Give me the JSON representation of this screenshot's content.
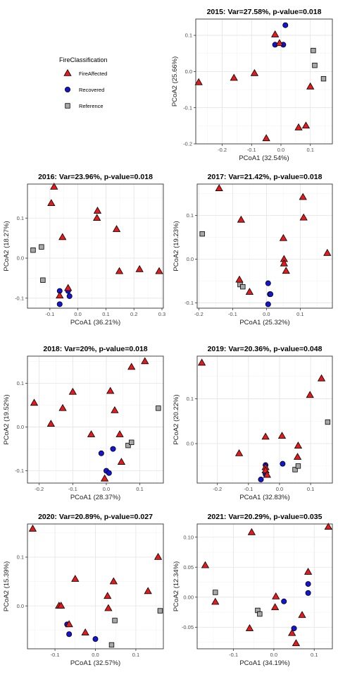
{
  "legend": {
    "title": "FireClassification",
    "items": [
      {
        "label": "FireAffected",
        "shape": "triangle",
        "color": "#e41a1c"
      },
      {
        "label": "Recovered",
        "shape": "circle",
        "color": "#1414d6"
      },
      {
        "label": "Reference",
        "shape": "square",
        "color": "#a8a8a8"
      }
    ]
  },
  "chart_data": [
    {
      "type": "scatter",
      "title": "2015: Var=27.58%, p-value=0.018",
      "xlabel": "PCoA1 (32.54%)",
      "ylabel": "PCoA2 (25.66%)",
      "xlim": [
        -0.29,
        0.175
      ],
      "ylim": [
        -0.2,
        0.145
      ],
      "xticks": [
        -0.3,
        -0.2,
        -0.1,
        0.0,
        0.1
      ],
      "xtick_labels": [
        "-0.3",
        "-0.2",
        "-0.1",
        "0.0",
        "0.1"
      ],
      "yticks": [
        -0.2,
        -0.1,
        0.0,
        0.1
      ],
      "ytick_labels": [
        "-0.2",
        "-0.1",
        "0.0",
        "0.1"
      ],
      "grid": true,
      "series": [
        {
          "name": "FireAffected",
          "points": [
            [
              -0.28,
              -0.03
            ],
            [
              -0.16,
              -0.018
            ],
            [
              -0.09,
              -0.005
            ],
            [
              -0.05,
              -0.185
            ],
            [
              -0.02,
              0.102
            ],
            [
              -0.005,
              0.078
            ],
            [
              0.06,
              -0.155
            ],
            [
              0.085,
              -0.15
            ],
            [
              0.1,
              -0.042
            ]
          ]
        },
        {
          "name": "Recovered",
          "points": [
            [
              -0.02,
              0.074
            ],
            [
              0.008,
              0.074
            ],
            [
              0.015,
              0.128
            ]
          ]
        },
        {
          "name": "Reference",
          "points": [
            [
              0.11,
              0.058
            ],
            [
              0.115,
              0.017
            ],
            [
              0.145,
              -0.02
            ]
          ]
        }
      ]
    },
    {
      "type": "scatter",
      "title": "2016: Var=23.96%, p-value=0.018",
      "xlabel": "PCoA1 (36.21%)",
      "ylabel": "PCoA2 (18.27%)",
      "xlim": [
        -0.18,
        0.305
      ],
      "ylim": [
        -0.125,
        0.185
      ],
      "xticks": [
        -0.1,
        0.0,
        0.1,
        0.2,
        0.3
      ],
      "xtick_labels": [
        "-0.1",
        "0.0",
        "0.1",
        "0.2",
        "0.3"
      ],
      "yticks": [
        -0.1,
        0.0,
        0.1
      ],
      "ytick_labels": [
        "-0.1",
        "0.0",
        "0.1"
      ],
      "grid": true,
      "series": [
        {
          "name": "FireAffected",
          "points": [
            [
              -0.085,
              0.178
            ],
            [
              -0.095,
              0.137
            ],
            [
              -0.055,
              0.052
            ],
            [
              -0.035,
              -0.075
            ],
            [
              -0.065,
              -0.094
            ],
            [
              0.07,
              0.118
            ],
            [
              0.068,
              0.1
            ],
            [
              0.138,
              0.072
            ],
            [
              0.148,
              -0.033
            ],
            [
              0.22,
              -0.028
            ],
            [
              0.29,
              -0.033
            ]
          ]
        },
        {
          "name": "Recovered",
          "points": [
            [
              -0.065,
              -0.082
            ],
            [
              -0.035,
              -0.082
            ],
            [
              -0.03,
              -0.095
            ],
            [
              -0.065,
              -0.115
            ]
          ]
        },
        {
          "name": "Reference",
          "points": [
            [
              -0.16,
              0.02
            ],
            [
              -0.13,
              0.028
            ],
            [
              -0.125,
              -0.055
            ]
          ]
        }
      ]
    },
    {
      "type": "scatter",
      "title": "2017: Var=21.42%, p-value=0.018",
      "xlabel": "PCoA1 (25.32%)",
      "ylabel": "PCoA2 (19.23%)",
      "xlim": [
        -0.205,
        0.195
      ],
      "ylim": [
        -0.112,
        0.172
      ],
      "xticks": [
        -0.2,
        -0.1,
        0.0,
        0.1,
        0.2
      ],
      "xtick_labels": [
        "-0.2",
        "-0.1",
        "0.0",
        "0.1",
        "0.2"
      ],
      "yticks": [
        -0.1,
        0.0,
        0.1
      ],
      "ytick_labels": [
        "-0.1",
        "0.0",
        "0.1"
      ],
      "grid": true,
      "series": [
        {
          "name": "FireAffected",
          "points": [
            [
              -0.14,
              0.162
            ],
            [
              -0.075,
              0.09
            ],
            [
              -0.08,
              -0.047
            ],
            [
              -0.05,
              -0.075
            ],
            [
              0.05,
              0.048
            ],
            [
              0.052,
              0.0
            ],
            [
              0.052,
              -0.01
            ],
            [
              0.058,
              -0.027
            ],
            [
              0.108,
              0.142
            ],
            [
              0.11,
              0.095
            ],
            [
              0.18,
              0.014
            ]
          ]
        },
        {
          "name": "Recovered",
          "points": [
            [
              0.005,
              -0.055
            ],
            [
              0.01,
              -0.08
            ],
            [
              0.012,
              -0.08
            ],
            [
              0.005,
              -0.103
            ]
          ]
        },
        {
          "name": "Reference",
          "points": [
            [
              -0.19,
              0.058
            ],
            [
              -0.078,
              -0.058
            ],
            [
              -0.07,
              -0.063
            ]
          ]
        }
      ]
    },
    {
      "type": "scatter",
      "title": "2018: Var=20%, p-value=0.018",
      "xlabel": "PCoA1 (28.37%)",
      "ylabel": "PCoA2 (19.52%)",
      "xlim": [
        -0.235,
        0.17
      ],
      "ylim": [
        -0.128,
        0.162
      ],
      "xticks": [
        -0.2,
        -0.1,
        0.0,
        0.1
      ],
      "xtick_labels": [
        "-0.2",
        "-0.1",
        "0.0",
        "0.1"
      ],
      "yticks": [
        -0.1,
        0.0,
        0.1
      ],
      "ytick_labels": [
        "-0.1",
        "0.0",
        "0.1"
      ],
      "grid": true,
      "series": [
        {
          "name": "FireAffected",
          "points": [
            [
              -0.215,
              0.055
            ],
            [
              -0.165,
              0.007
            ],
            [
              -0.13,
              0.043
            ],
            [
              -0.1,
              0.08
            ],
            [
              -0.045,
              -0.017
            ],
            [
              0.012,
              0.082
            ],
            [
              0.025,
              0.038
            ],
            [
              0.04,
              -0.017
            ],
            [
              0.045,
              -0.08
            ],
            [
              0.075,
              0.137
            ],
            [
              0.115,
              0.15
            ],
            [
              -0.005,
              -0.118
            ]
          ]
        },
        {
          "name": "Recovered",
          "points": [
            [
              -0.015,
              -0.06
            ],
            [
              0.02,
              -0.05
            ],
            [
              0.0,
              -0.1
            ],
            [
              0.008,
              -0.105
            ]
          ]
        },
        {
          "name": "Reference",
          "points": [
            [
              0.065,
              -0.042
            ],
            [
              0.075,
              -0.035
            ],
            [
              0.155,
              0.043
            ]
          ]
        }
      ]
    },
    {
      "type": "scatter",
      "title": "2019: Var=20.36%, p-value=0.048",
      "xlabel": "PCoA1 (32.83%)",
      "ylabel": "PCoA2 (20.22%)",
      "xlim": [
        -0.265,
        0.17
      ],
      "ylim": [
        -0.088,
        0.195
      ],
      "xticks": [
        -0.2,
        -0.1,
        0.0,
        0.1
      ],
      "xtick_labels": [
        "-0.2",
        "-0.1",
        "0.0",
        "0.1"
      ],
      "yticks": [
        0.0,
        0.1
      ],
      "ytick_labels": [
        "0.0",
        "0.1"
      ],
      "grid": true,
      "series": [
        {
          "name": "FireAffected",
          "points": [
            [
              -0.25,
              0.18
            ],
            [
              -0.13,
              -0.022
            ],
            [
              -0.045,
              0.015
            ],
            [
              -0.045,
              -0.053
            ],
            [
              -0.045,
              -0.06
            ],
            [
              -0.04,
              -0.07
            ],
            [
              0.008,
              0.017
            ],
            [
              0.06,
              -0.005
            ],
            [
              0.058,
              -0.03
            ],
            [
              0.098,
              0.108
            ],
            [
              0.135,
              0.145
            ]
          ]
        },
        {
          "name": "Recovered",
          "points": [
            [
              -0.045,
              -0.048
            ],
            [
              -0.045,
              -0.068
            ],
            [
              -0.06,
              -0.08
            ],
            [
              0.01,
              -0.045
            ]
          ]
        },
        {
          "name": "Reference",
          "points": [
            [
              0.05,
              -0.058
            ],
            [
              0.06,
              -0.05
            ],
            [
              0.155,
              0.048
            ]
          ]
        }
      ]
    },
    {
      "type": "scatter",
      "title": "2020: Var=20.89%, p-value=0.027",
      "xlabel": "PCoA1 (32.57%)",
      "ylabel": "PCoA2 (15.39%)",
      "xlim": [
        -0.168,
        0.168
      ],
      "ylim": [
        -0.088,
        0.168
      ],
      "xticks": [
        -0.1,
        0.0,
        0.1
      ],
      "xtick_labels": [
        "-0.1",
        "0.0",
        "0.1"
      ],
      "yticks": [
        0.0,
        0.1
      ],
      "ytick_labels": [
        "0.0",
        "0.1"
      ],
      "grid": true,
      "series": [
        {
          "name": "FireAffected",
          "points": [
            [
              -0.155,
              0.158
            ],
            [
              -0.09,
              0.0
            ],
            [
              -0.085,
              0.0
            ],
            [
              -0.065,
              -0.038
            ],
            [
              -0.05,
              0.055
            ],
            [
              -0.025,
              -0.055
            ],
            [
              0.03,
              0.02
            ],
            [
              0.032,
              -0.005
            ],
            [
              0.045,
              0.05
            ],
            [
              0.13,
              0.03
            ],
            [
              0.155,
              0.1
            ]
          ]
        },
        {
          "name": "Recovered",
          "points": [
            [
              -0.07,
              -0.038
            ],
            [
              -0.065,
              -0.058
            ],
            [
              0.0,
              -0.068
            ]
          ]
        },
        {
          "name": "Reference",
          "points": [
            [
              0.048,
              -0.03
            ],
            [
              0.04,
              -0.08
            ],
            [
              0.16,
              -0.01
            ]
          ]
        }
      ]
    },
    {
      "type": "scatter",
      "title": "2021: Var=20.29%, p-value=0.035",
      "xlabel": "PCoA1 (34.19%)",
      "ylabel": "PCoA2 (12.34%)",
      "xlim": [
        -0.19,
        0.145
      ],
      "ylim": [
        -0.086,
        0.122
      ],
      "xticks": [
        -0.1,
        0.0,
        0.1
      ],
      "xtick_labels": [
        "-0.1",
        "0.0",
        "0.1"
      ],
      "yticks": [
        -0.05,
        0.0,
        0.05,
        0.1
      ],
      "ytick_labels": [
        "-0.05",
        "0.00",
        "0.05",
        "0.10"
      ],
      "grid": true,
      "series": [
        {
          "name": "FireAffected",
          "points": [
            [
              -0.17,
              0.053
            ],
            [
              -0.145,
              -0.008
            ],
            [
              -0.055,
              0.108
            ],
            [
              -0.06,
              -0.052
            ],
            [
              0.005,
              0.001
            ],
            [
              0.003,
              -0.017
            ],
            [
              0.045,
              -0.06
            ],
            [
              0.055,
              -0.077
            ],
            [
              0.07,
              -0.03
            ],
            [
              0.085,
              0.042
            ],
            [
              0.135,
              0.117
            ]
          ]
        },
        {
          "name": "Recovered",
          "points": [
            [
              0.025,
              -0.007
            ],
            [
              0.05,
              -0.052
            ],
            [
              0.085,
              0.022
            ],
            [
              0.085,
              0.007
            ]
          ]
        },
        {
          "name": "Reference",
          "points": [
            [
              -0.145,
              0.008
            ],
            [
              -0.04,
              -0.022
            ],
            [
              -0.035,
              -0.028
            ]
          ]
        }
      ]
    }
  ]
}
